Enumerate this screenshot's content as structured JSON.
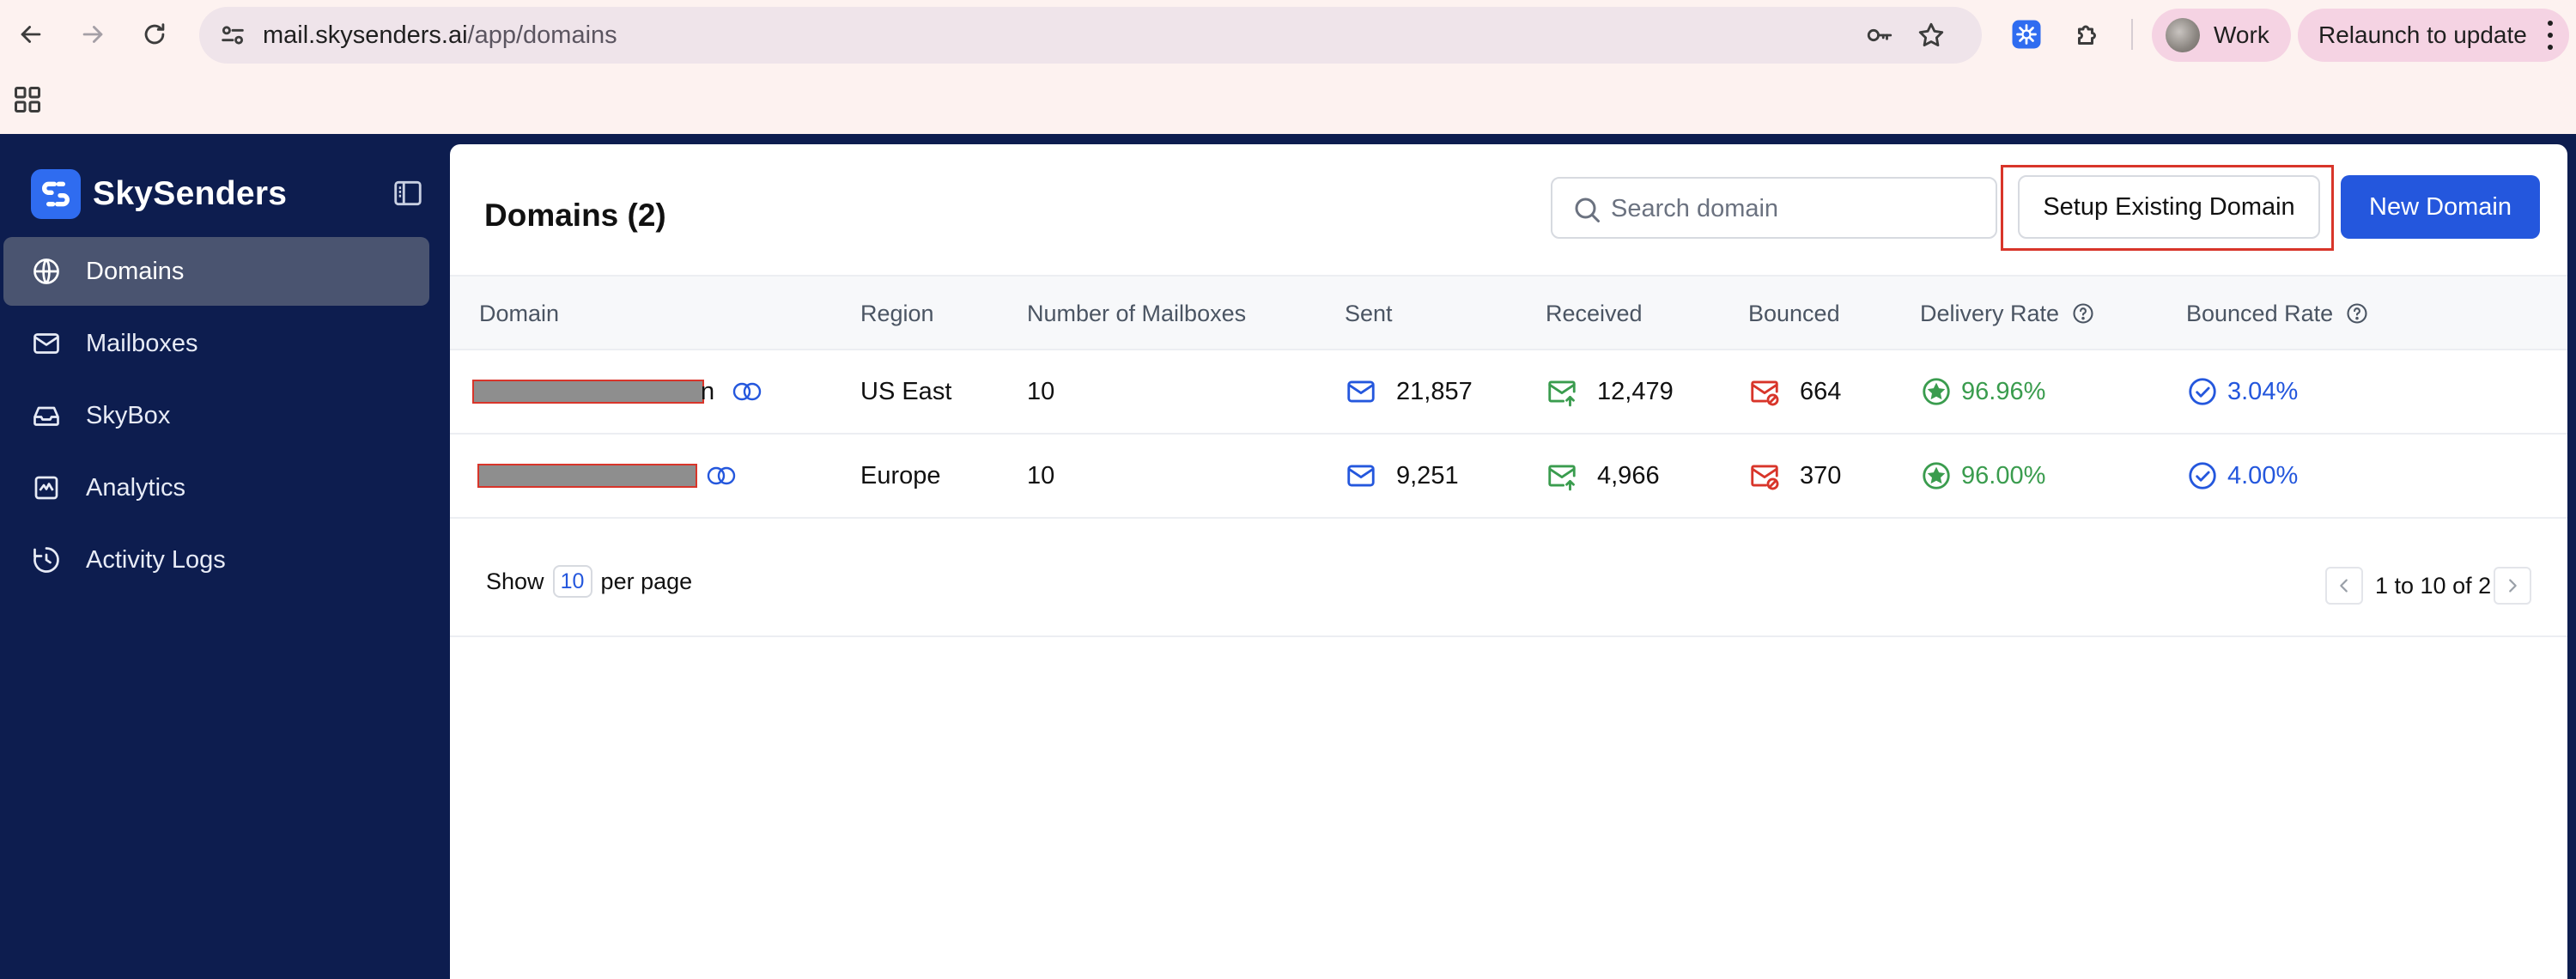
{
  "browser": {
    "url_host": "mail.skysenders.ai",
    "url_path": "/app/domains",
    "profile_name": "Work",
    "relaunch_label": "Relaunch to update"
  },
  "app": {
    "brand_name": "SkySenders",
    "accent_color": "#2457dd",
    "sidebar_bg": "#0d1d4f",
    "sidebar": {
      "items": [
        {
          "label": "Domains",
          "icon": "globe-icon",
          "active": true
        },
        {
          "label": "Mailboxes",
          "icon": "mail-icon",
          "active": false
        },
        {
          "label": "SkyBox",
          "icon": "inbox-icon",
          "active": false
        },
        {
          "label": "Analytics",
          "icon": "analytics-icon",
          "active": false
        },
        {
          "label": "Activity Logs",
          "icon": "history-icon",
          "active": false
        }
      ]
    }
  },
  "main": {
    "title": "Domains (2)",
    "search_placeholder": "Search domain",
    "setup_button": "Setup Existing Domain",
    "new_button": "New Domain",
    "table": {
      "columns": [
        "Domain",
        "Region",
        "Number of Mailboxes",
        "Sent",
        "Received",
        "Bounced",
        "Delivery Rate",
        "Bounced Rate"
      ],
      "rows": [
        {
          "domain_suffix": "n",
          "region": "US East",
          "mailboxes": "10",
          "sent": "21,857",
          "received": "12,479",
          "bounced": "664",
          "delivery_rate": "96.96%",
          "bounced_rate": "3.04%"
        },
        {
          "domain_suffix": "",
          "region": "Europe",
          "mailboxes": "10",
          "sent": "9,251",
          "received": "4,966",
          "bounced": "370",
          "delivery_rate": "96.00%",
          "bounced_rate": "4.00%"
        }
      ]
    },
    "pagination": {
      "show_label": "Show",
      "per_page_value": "10",
      "per_page_label": "per page",
      "range_text": "1 to 10 of 2"
    }
  }
}
